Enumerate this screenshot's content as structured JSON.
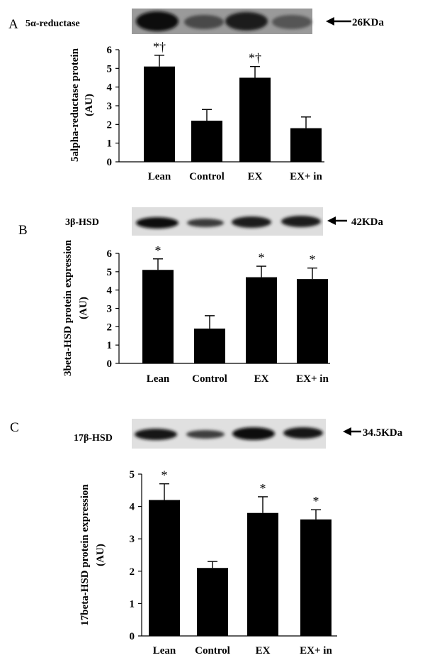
{
  "chart_data": [
    {
      "type": "bar",
      "panel": "A",
      "protein": "5α-reductase",
      "kda": "26KDa",
      "categories": [
        "Lean",
        "Control",
        "EX",
        "EX+ in"
      ],
      "values": [
        5.1,
        2.2,
        4.5,
        1.8
      ],
      "errors": [
        0.6,
        0.6,
        0.6,
        0.6
      ],
      "annotations": [
        "*†",
        "",
        "*†",
        ""
      ],
      "ylabel_line1": "5alpha-reductase protein",
      "ylabel_line2": "(AU)",
      "ylim": [
        0,
        6
      ],
      "yticks": [
        "0",
        "1",
        "2",
        "3",
        "4",
        "5",
        "6"
      ],
      "bar_color": "#000000"
    },
    {
      "type": "bar",
      "panel": "B",
      "protein": "3β-HSD",
      "kda": "42KDa",
      "categories": [
        "Lean",
        "Control",
        "EX",
        "EX+ in"
      ],
      "values": [
        5.1,
        1.9,
        4.7,
        4.6
      ],
      "errors": [
        0.6,
        0.7,
        0.6,
        0.6
      ],
      "annotations": [
        "*",
        "",
        "*",
        "*"
      ],
      "ylabel_line1": "3beta-HSD protein expression",
      "ylabel_line2": "(AU)",
      "ylim": [
        0,
        6
      ],
      "yticks": [
        "0",
        "1",
        "2",
        "3",
        "4",
        "5",
        "6"
      ],
      "bar_color": "#000000"
    },
    {
      "type": "bar",
      "panel": "C",
      "protein": "17β-HSD",
      "kda": "34.5KDa",
      "categories": [
        "Lean",
        "Control",
        "EX",
        "EX+ in"
      ],
      "values": [
        4.2,
        2.1,
        3.8,
        3.6
      ],
      "errors": [
        0.5,
        0.2,
        0.5,
        0.3
      ],
      "annotations": [
        "*",
        "",
        "*",
        "*"
      ],
      "ylabel_line1": "17beta-HSD protein expression",
      "ylabel_line2": "(AU)",
      "ylim": [
        0,
        5
      ],
      "yticks": [
        "0",
        "1",
        "2",
        "3",
        "4",
        "5"
      ],
      "bar_color": "#000000"
    }
  ]
}
